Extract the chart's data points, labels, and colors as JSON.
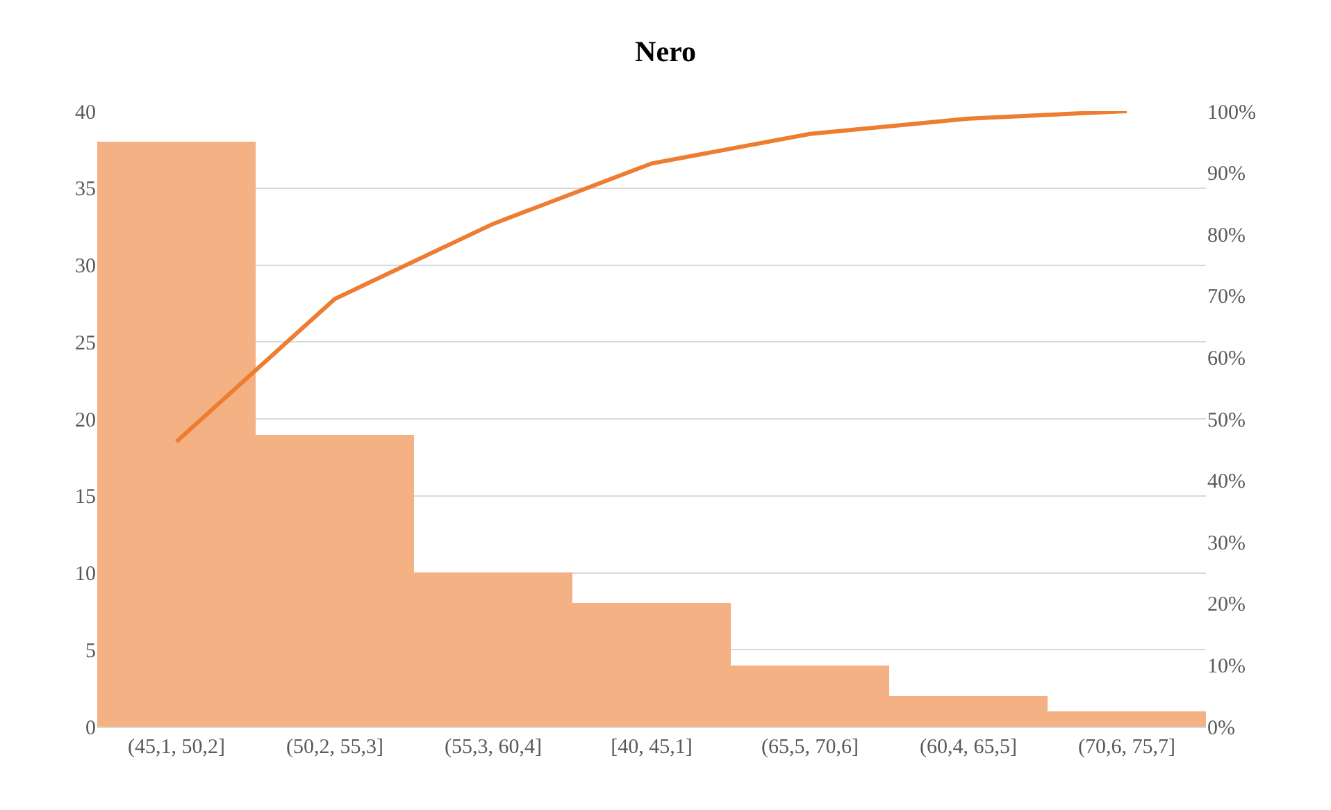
{
  "chart_data": {
    "type": "bar",
    "title": "Nero",
    "categories": [
      "(45,1, 50,2]",
      "(50,2, 55,3]",
      "(55,3, 60,4]",
      "[40, 45,1]",
      "(65,5, 70,6]",
      "(60,4, 65,5]",
      "(70,6, 75,7]"
    ],
    "series": [
      {
        "color": "#f4b183",
        "values": [
          38,
          19,
          10,
          8,
          4,
          2,
          1
        ]
      },
      {
        "type": "line",
        "axis": "y2",
        "color": "#ed7d31",
        "values": [
          46.3,
          69.5,
          81.7,
          91.5,
          96.3,
          98.8,
          100
        ]
      }
    ],
    "ylim": [
      0,
      40
    ],
    "yticks": [
      0,
      5,
      10,
      15,
      20,
      25,
      30,
      35,
      40
    ],
    "y2lim": [
      0,
      100
    ],
    "y2ticks": [
      {
        "value": 0,
        "label": "0%"
      },
      {
        "value": 10,
        "label": "10%"
      },
      {
        "value": 20,
        "label": "20%"
      },
      {
        "value": 30,
        "label": "30%"
      },
      {
        "value": 40,
        "label": "40%"
      },
      {
        "value": 50,
        "label": "50%"
      },
      {
        "value": 60,
        "label": "60%"
      },
      {
        "value": 70,
        "label": "70%"
      },
      {
        "value": 80,
        "label": "80%"
      },
      {
        "value": 90,
        "label": "90%"
      },
      {
        "value": 100,
        "label": "100%"
      }
    ],
    "grid": "y",
    "marker": "none",
    "line_style": "solid"
  }
}
